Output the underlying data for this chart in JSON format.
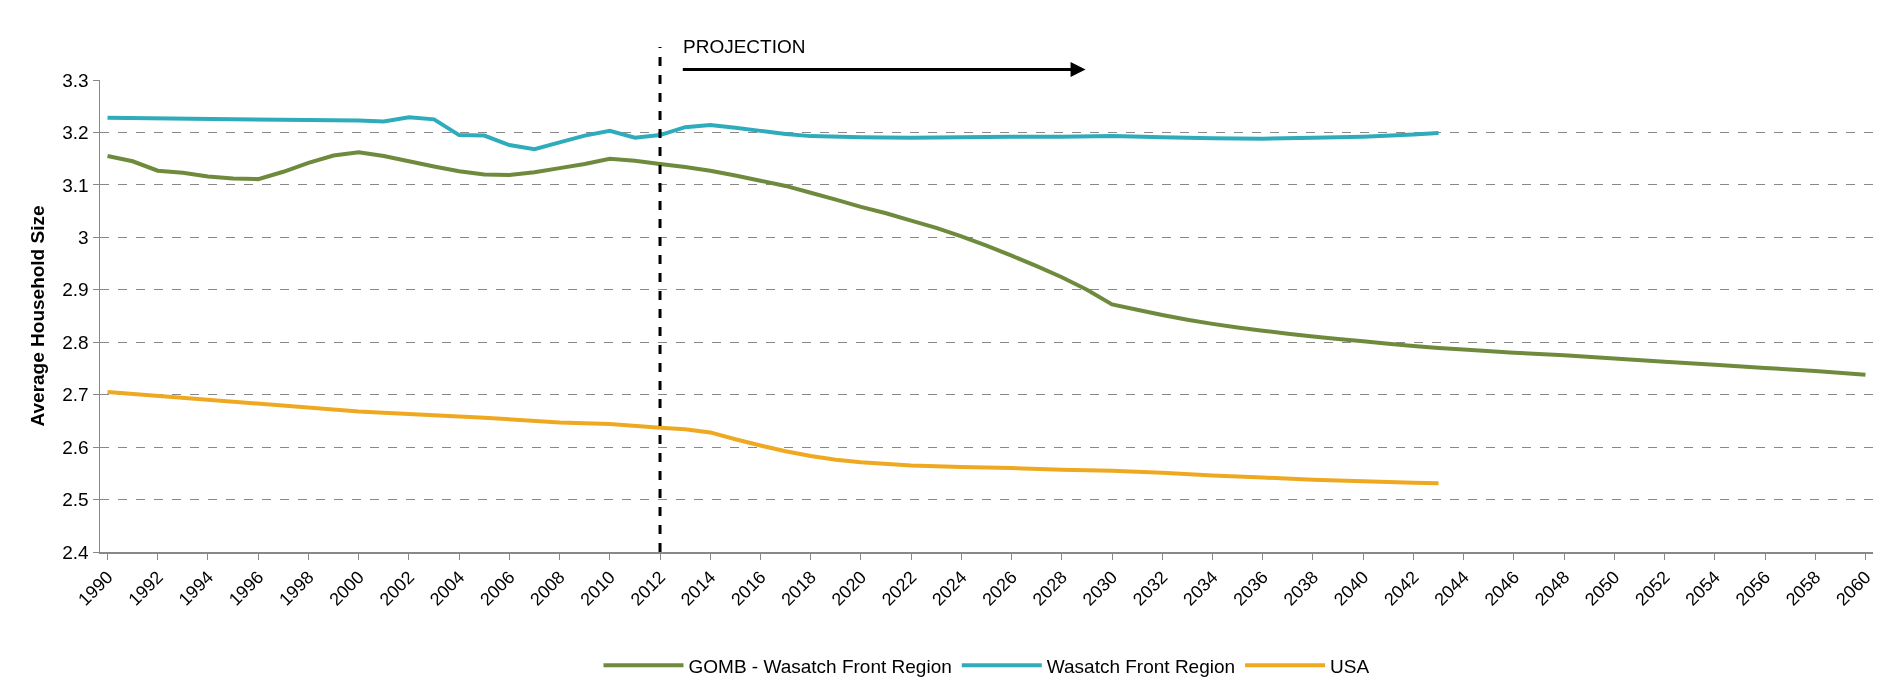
{
  "chart_data": {
    "type": "line",
    "ylabel": "Average Household Size",
    "annotations": [
      "PROJECTION"
    ],
    "xlim": [
      1989.7,
      2060.3
    ],
    "xticks": [
      1990,
      1992,
      1994,
      1996,
      1998,
      2000,
      2002,
      2004,
      2006,
      2008,
      2010,
      2012,
      2014,
      2016,
      2018,
      2020,
      2022,
      2024,
      2026,
      2028,
      2030,
      2032,
      2034,
      2036,
      2038,
      2040,
      2042,
      2044,
      2046,
      2048,
      2050,
      2052,
      2054,
      2056,
      2058,
      2060
    ],
    "ylim": [
      2.4,
      3.3
    ],
    "yticks": [
      2.4,
      2.5,
      2.6,
      2.7,
      2.8,
      2.9,
      3,
      3.1,
      3.2,
      3.3
    ],
    "grid": "y",
    "legend": "bottom",
    "marker": "none",
    "line_style": "solid",
    "ref_lines": [
      {
        "axis": "x",
        "value": 2012,
        "color": "#000000",
        "line_style": "dashed"
      }
    ],
    "series": [
      {
        "name": "GOMB - Wasatch Front Region",
        "color": "#6e8b3d",
        "x": [
          1990,
          1991,
          1992,
          1993,
          1994,
          1995,
          1996,
          1997,
          1998,
          1999,
          2000,
          2001,
          2002,
          2003,
          2004,
          2005,
          2006,
          2007,
          2008,
          2009,
          2010,
          2011,
          2012,
          2013,
          2014,
          2015,
          2016,
          2017,
          2018,
          2019,
          2020,
          2021,
          2022,
          2023,
          2024,
          2025,
          2026,
          2027,
          2028,
          2029,
          2030,
          2031,
          2032,
          2033,
          2034,
          2035,
          2036,
          2037,
          2038,
          2039,
          2040,
          2041,
          2042,
          2043,
          2044,
          2046,
          2048,
          2050,
          2052,
          2054,
          2056,
          2058,
          2060
        ],
        "values": [
          3.155,
          3.145,
          3.127,
          3.123,
          3.116,
          3.112,
          3.111,
          3.125,
          3.142,
          3.156,
          3.162,
          3.155,
          3.145,
          3.135,
          3.126,
          3.12,
          3.119,
          3.124,
          3.132,
          3.14,
          3.15,
          3.146,
          3.14,
          3.134,
          3.127,
          3.118,
          3.108,
          3.098,
          3.085,
          3.072,
          3.058,
          3.046,
          3.032,
          3.018,
          3.002,
          2.984,
          2.965,
          2.945,
          2.924,
          2.9,
          2.872,
          2.862,
          2.852,
          2.843,
          2.835,
          2.828,
          2.822,
          2.816,
          2.811,
          2.806,
          2.802,
          2.797,
          2.793,
          2.789,
          2.786,
          2.78,
          2.775,
          2.769,
          2.763,
          2.757,
          2.751,
          2.745,
          2.738
        ]
      },
      {
        "name": "Wasatch Front Region",
        "color": "#2eacbc",
        "x": [
          1990,
          1995,
          2000,
          2001,
          2002,
          2003,
          2004,
          2005,
          2006,
          2007,
          2008,
          2009,
          2010,
          2011,
          2012,
          2013,
          2014,
          2015,
          2016,
          2017,
          2018,
          2020,
          2022,
          2024,
          2026,
          2028,
          2030,
          2032,
          2034,
          2036,
          2038,
          2040,
          2042,
          2043
        ],
        "values": [
          3.228,
          3.225,
          3.223,
          3.221,
          3.229,
          3.225,
          3.195,
          3.194,
          3.176,
          3.168,
          3.181,
          3.194,
          3.203,
          3.19,
          3.195,
          3.21,
          3.214,
          3.209,
          3.203,
          3.197,
          3.193,
          3.191,
          3.19,
          3.191,
          3.192,
          3.192,
          3.193,
          3.191,
          3.189,
          3.188,
          3.19,
          3.192,
          3.196,
          3.199
        ]
      },
      {
        "name": "USA",
        "color": "#eea921",
        "x": [
          1990,
          2000,
          2005,
          2008,
          2010,
          2012,
          2013,
          2014,
          2015,
          2016,
          2017,
          2018,
          2019,
          2020,
          2022,
          2024,
          2026,
          2028,
          2030,
          2032,
          2034,
          2036,
          2038,
          2040,
          2042,
          2043
        ],
        "values": [
          2.705,
          2.668,
          2.656,
          2.647,
          2.644,
          2.637,
          2.634,
          2.628,
          2.615,
          2.603,
          2.592,
          2.583,
          2.576,
          2.571,
          2.565,
          2.562,
          2.56,
          2.557,
          2.555,
          2.551,
          2.546,
          2.542,
          2.538,
          2.535,
          2.532,
          2.531
        ]
      }
    ]
  }
}
